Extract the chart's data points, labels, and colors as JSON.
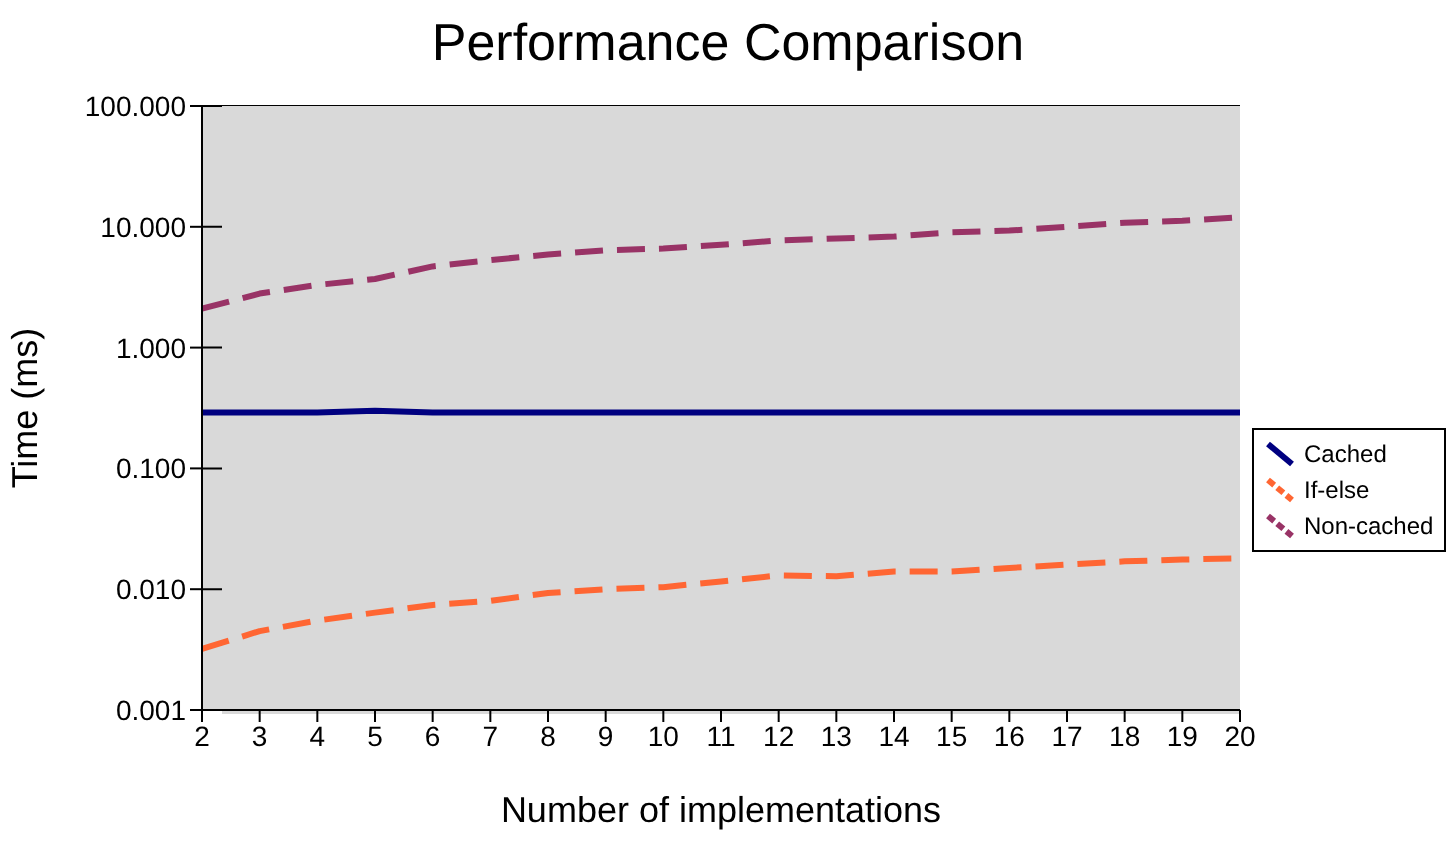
{
  "chart_data": {
    "type": "line",
    "title": "Performance Comparison",
    "xlabel": "Number of implementations",
    "ylabel": "Time (ms)",
    "x": [
      2,
      3,
      4,
      5,
      6,
      7,
      8,
      9,
      10,
      11,
      12,
      13,
      14,
      15,
      16,
      17,
      18,
      19,
      20
    ],
    "xlim": [
      2,
      20
    ],
    "xticks": [
      2,
      3,
      4,
      5,
      6,
      7,
      8,
      9,
      10,
      11,
      12,
      13,
      14,
      15,
      16,
      17,
      18,
      19,
      20
    ],
    "ylim": [
      0.001,
      100
    ],
    "yticks": [
      {
        "value": 0.001,
        "label": "0.001"
      },
      {
        "value": 0.01,
        "label": "0.010"
      },
      {
        "value": 0.1,
        "label": "0.100"
      },
      {
        "value": 1,
        "label": "1.000"
      },
      {
        "value": 10,
        "label": "10.000"
      },
      {
        "value": 100,
        "label": "100.000"
      }
    ],
    "log": "y",
    "grid": "y",
    "legend": "right",
    "marker": "none",
    "series": [
      {
        "name": "Cached",
        "color": "#000080",
        "line_style": "solid",
        "values": [
          0.29,
          0.29,
          0.29,
          0.3,
          0.29,
          0.29,
          0.29,
          0.29,
          0.29,
          0.29,
          0.29,
          0.29,
          0.29,
          0.29,
          0.29,
          0.29,
          0.29,
          0.29,
          0.29
        ]
      },
      {
        "name": "If-else",
        "color": "#ff6633",
        "line_style": "dashed",
        "values": [
          0.0032,
          0.0045,
          0.0055,
          0.0064,
          0.0074,
          0.008,
          0.0093,
          0.01,
          0.0104,
          0.0116,
          0.013,
          0.0128,
          0.014,
          0.014,
          0.015,
          0.016,
          0.017,
          0.0176,
          0.018
        ]
      },
      {
        "name": "Non-cached",
        "color": "#993366",
        "line_style": "dashed",
        "values": [
          2.1,
          2.8,
          3.3,
          3.7,
          4.7,
          5.3,
          5.9,
          6.4,
          6.6,
          7.1,
          7.7,
          8,
          8.3,
          9,
          9.3,
          10,
          10.8,
          11.2,
          12
        ]
      }
    ]
  }
}
